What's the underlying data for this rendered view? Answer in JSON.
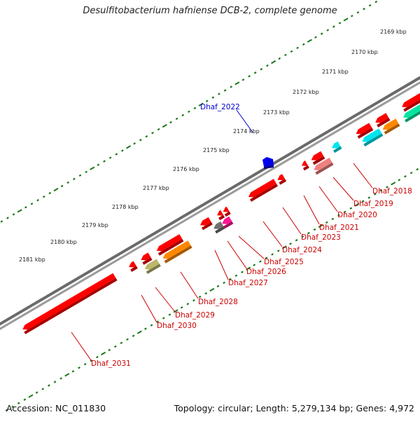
{
  "title": "Desulfitobacterium hafniense DCB-2, complete genome",
  "footer": {
    "accession": "Accession: NC_011830",
    "summary": "Topology: circular; Length: 5,279,134 bp; Genes: 4,972"
  },
  "colors": {
    "backbone": "#7a7a7a",
    "tick": "#1a7a1a",
    "kbp_label": "#222222",
    "gene_label": "#cc0000",
    "highlight_label": "#0000cc"
  },
  "ticks": [
    {
      "label": "2169 kbp"
    },
    {
      "label": "2170 kbp"
    },
    {
      "label": "2171 kbp"
    },
    {
      "label": "2172 kbp"
    },
    {
      "label": "2173 kbp"
    },
    {
      "label": "2174 kbp"
    },
    {
      "label": "2175 kbp"
    },
    {
      "label": "2176 kbp"
    },
    {
      "label": "2177 kbp"
    },
    {
      "label": "2178 kbp"
    },
    {
      "label": "2179 kbp"
    },
    {
      "label": "2180 kbp"
    },
    {
      "label": "2181 kbp"
    }
  ],
  "highlight": {
    "label": "Dhaf_2022",
    "color": "#0000ee"
  },
  "genes": [
    {
      "label": "Dhaf_2018",
      "color": "#ff0000"
    },
    {
      "label": "Dhaf_2019",
      "color": "#ff8800"
    },
    {
      "label": "Dhaf_2020",
      "color": "#00e5ee"
    },
    {
      "label": "Dhaf_2021",
      "color": "#ff0000"
    },
    {
      "label": "Dhaf_2023",
      "color": "#f08080"
    },
    {
      "label": "Dhaf_2024",
      "color": "#ff0000"
    },
    {
      "label": "Dhaf_2025",
      "color": "#ff0000"
    },
    {
      "label": "Dhaf_2026",
      "color": "#ff1493"
    },
    {
      "label": "Dhaf_2027",
      "color": "#707070"
    },
    {
      "label": "Dhaf_2028",
      "color": "#ff8800"
    },
    {
      "label": "Dhaf_2029",
      "color": "#bdb76b"
    },
    {
      "label": "Dhaf_2030",
      "color": "#ff0000"
    },
    {
      "label": "Dhaf_2031",
      "color": "#ff0000"
    }
  ]
}
